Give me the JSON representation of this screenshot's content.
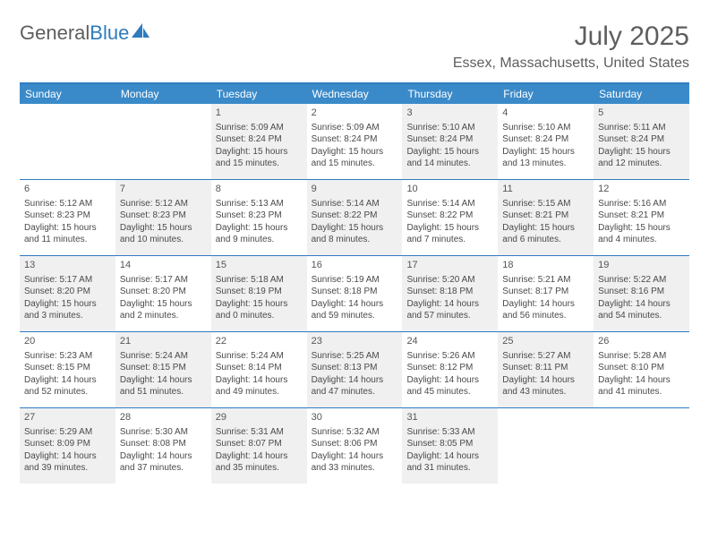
{
  "logo": {
    "text1": "General",
    "text2": "Blue"
  },
  "title": "July 2025",
  "location": "Essex, Massachusetts, United States",
  "colors": {
    "brand": "#2f7bbf",
    "header_bg": "#3a8ac9",
    "text": "#5e5e5e",
    "shaded": "#f0f0f1"
  },
  "weekdays": [
    "Sunday",
    "Monday",
    "Tuesday",
    "Wednesday",
    "Thursday",
    "Friday",
    "Saturday"
  ],
  "weeks": [
    [
      {
        "empty": true
      },
      {
        "empty": true
      },
      {
        "day": "1",
        "shaded": true,
        "sunrise": "Sunrise: 5:09 AM",
        "sunset": "Sunset: 8:24 PM",
        "daylight1": "Daylight: 15 hours",
        "daylight2": "and 15 minutes."
      },
      {
        "day": "2",
        "sunrise": "Sunrise: 5:09 AM",
        "sunset": "Sunset: 8:24 PM",
        "daylight1": "Daylight: 15 hours",
        "daylight2": "and 15 minutes."
      },
      {
        "day": "3",
        "shaded": true,
        "sunrise": "Sunrise: 5:10 AM",
        "sunset": "Sunset: 8:24 PM",
        "daylight1": "Daylight: 15 hours",
        "daylight2": "and 14 minutes."
      },
      {
        "day": "4",
        "sunrise": "Sunrise: 5:10 AM",
        "sunset": "Sunset: 8:24 PM",
        "daylight1": "Daylight: 15 hours",
        "daylight2": "and 13 minutes."
      },
      {
        "day": "5",
        "shaded": true,
        "sunrise": "Sunrise: 5:11 AM",
        "sunset": "Sunset: 8:24 PM",
        "daylight1": "Daylight: 15 hours",
        "daylight2": "and 12 minutes."
      }
    ],
    [
      {
        "day": "6",
        "sunrise": "Sunrise: 5:12 AM",
        "sunset": "Sunset: 8:23 PM",
        "daylight1": "Daylight: 15 hours",
        "daylight2": "and 11 minutes."
      },
      {
        "day": "7",
        "shaded": true,
        "sunrise": "Sunrise: 5:12 AM",
        "sunset": "Sunset: 8:23 PM",
        "daylight1": "Daylight: 15 hours",
        "daylight2": "and 10 minutes."
      },
      {
        "day": "8",
        "sunrise": "Sunrise: 5:13 AM",
        "sunset": "Sunset: 8:23 PM",
        "daylight1": "Daylight: 15 hours",
        "daylight2": "and 9 minutes."
      },
      {
        "day": "9",
        "shaded": true,
        "sunrise": "Sunrise: 5:14 AM",
        "sunset": "Sunset: 8:22 PM",
        "daylight1": "Daylight: 15 hours",
        "daylight2": "and 8 minutes."
      },
      {
        "day": "10",
        "sunrise": "Sunrise: 5:14 AM",
        "sunset": "Sunset: 8:22 PM",
        "daylight1": "Daylight: 15 hours",
        "daylight2": "and 7 minutes."
      },
      {
        "day": "11",
        "shaded": true,
        "sunrise": "Sunrise: 5:15 AM",
        "sunset": "Sunset: 8:21 PM",
        "daylight1": "Daylight: 15 hours",
        "daylight2": "and 6 minutes."
      },
      {
        "day": "12",
        "sunrise": "Sunrise: 5:16 AM",
        "sunset": "Sunset: 8:21 PM",
        "daylight1": "Daylight: 15 hours",
        "daylight2": "and 4 minutes."
      }
    ],
    [
      {
        "day": "13",
        "shaded": true,
        "sunrise": "Sunrise: 5:17 AM",
        "sunset": "Sunset: 8:20 PM",
        "daylight1": "Daylight: 15 hours",
        "daylight2": "and 3 minutes."
      },
      {
        "day": "14",
        "sunrise": "Sunrise: 5:17 AM",
        "sunset": "Sunset: 8:20 PM",
        "daylight1": "Daylight: 15 hours",
        "daylight2": "and 2 minutes."
      },
      {
        "day": "15",
        "shaded": true,
        "sunrise": "Sunrise: 5:18 AM",
        "sunset": "Sunset: 8:19 PM",
        "daylight1": "Daylight: 15 hours",
        "daylight2": "and 0 minutes."
      },
      {
        "day": "16",
        "sunrise": "Sunrise: 5:19 AM",
        "sunset": "Sunset: 8:18 PM",
        "daylight1": "Daylight: 14 hours",
        "daylight2": "and 59 minutes."
      },
      {
        "day": "17",
        "shaded": true,
        "sunrise": "Sunrise: 5:20 AM",
        "sunset": "Sunset: 8:18 PM",
        "daylight1": "Daylight: 14 hours",
        "daylight2": "and 57 minutes."
      },
      {
        "day": "18",
        "sunrise": "Sunrise: 5:21 AM",
        "sunset": "Sunset: 8:17 PM",
        "daylight1": "Daylight: 14 hours",
        "daylight2": "and 56 minutes."
      },
      {
        "day": "19",
        "shaded": true,
        "sunrise": "Sunrise: 5:22 AM",
        "sunset": "Sunset: 8:16 PM",
        "daylight1": "Daylight: 14 hours",
        "daylight2": "and 54 minutes."
      }
    ],
    [
      {
        "day": "20",
        "sunrise": "Sunrise: 5:23 AM",
        "sunset": "Sunset: 8:15 PM",
        "daylight1": "Daylight: 14 hours",
        "daylight2": "and 52 minutes."
      },
      {
        "day": "21",
        "shaded": true,
        "sunrise": "Sunrise: 5:24 AM",
        "sunset": "Sunset: 8:15 PM",
        "daylight1": "Daylight: 14 hours",
        "daylight2": "and 51 minutes."
      },
      {
        "day": "22",
        "sunrise": "Sunrise: 5:24 AM",
        "sunset": "Sunset: 8:14 PM",
        "daylight1": "Daylight: 14 hours",
        "daylight2": "and 49 minutes."
      },
      {
        "day": "23",
        "shaded": true,
        "sunrise": "Sunrise: 5:25 AM",
        "sunset": "Sunset: 8:13 PM",
        "daylight1": "Daylight: 14 hours",
        "daylight2": "and 47 minutes."
      },
      {
        "day": "24",
        "sunrise": "Sunrise: 5:26 AM",
        "sunset": "Sunset: 8:12 PM",
        "daylight1": "Daylight: 14 hours",
        "daylight2": "and 45 minutes."
      },
      {
        "day": "25",
        "shaded": true,
        "sunrise": "Sunrise: 5:27 AM",
        "sunset": "Sunset: 8:11 PM",
        "daylight1": "Daylight: 14 hours",
        "daylight2": "and 43 minutes."
      },
      {
        "day": "26",
        "sunrise": "Sunrise: 5:28 AM",
        "sunset": "Sunset: 8:10 PM",
        "daylight1": "Daylight: 14 hours",
        "daylight2": "and 41 minutes."
      }
    ],
    [
      {
        "day": "27",
        "shaded": true,
        "sunrise": "Sunrise: 5:29 AM",
        "sunset": "Sunset: 8:09 PM",
        "daylight1": "Daylight: 14 hours",
        "daylight2": "and 39 minutes."
      },
      {
        "day": "28",
        "sunrise": "Sunrise: 5:30 AM",
        "sunset": "Sunset: 8:08 PM",
        "daylight1": "Daylight: 14 hours",
        "daylight2": "and 37 minutes."
      },
      {
        "day": "29",
        "shaded": true,
        "sunrise": "Sunrise: 5:31 AM",
        "sunset": "Sunset: 8:07 PM",
        "daylight1": "Daylight: 14 hours",
        "daylight2": "and 35 minutes."
      },
      {
        "day": "30",
        "sunrise": "Sunrise: 5:32 AM",
        "sunset": "Sunset: 8:06 PM",
        "daylight1": "Daylight: 14 hours",
        "daylight2": "and 33 minutes."
      },
      {
        "day": "31",
        "shaded": true,
        "sunrise": "Sunrise: 5:33 AM",
        "sunset": "Sunset: 8:05 PM",
        "daylight1": "Daylight: 14 hours",
        "daylight2": "and 31 minutes."
      },
      {
        "empty": true
      },
      {
        "empty": true
      }
    ]
  ]
}
